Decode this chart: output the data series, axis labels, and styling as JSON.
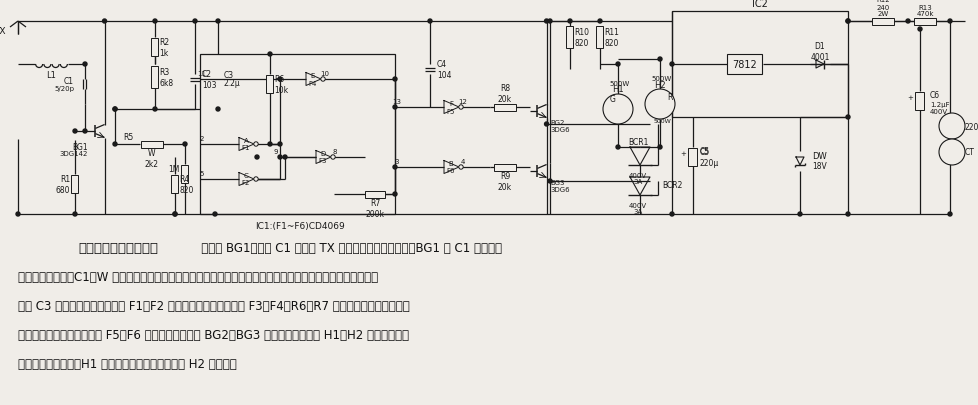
{
  "title": "双色舞姿同步闪烁彩灯",
  "description_lines": [
    "双色舞姿同步闪烁彩灯   三极管 BG1、电容 C1 和天线 TX 等组成了微波探测电路。BG1 在 C1 的正反馈",
    "作用下产生振荡，C1、W 可调节振荡频率。天线将微波辐射到周围空间，根据多普勒效应探测人体活动。由耦合",
    "电容 C3 输入的人体频移信号经 F1、F2 构成的放大器后，再送入 F3、F4、R6、R7 组成的斯密特触发电路整",
    "形，输出方波脉冲信号，经 F5、F6 反相隔离后，控制 BG2、BG3 的通断，从而控制 H1、H2 的亮灭闪烁。",
    "无人体移动信号时，H1 亮，发绿光，有人体信号时 H2 发红光。"
  ],
  "fig_width": 9.79,
  "fig_height": 4.06,
  "dpi": 100
}
